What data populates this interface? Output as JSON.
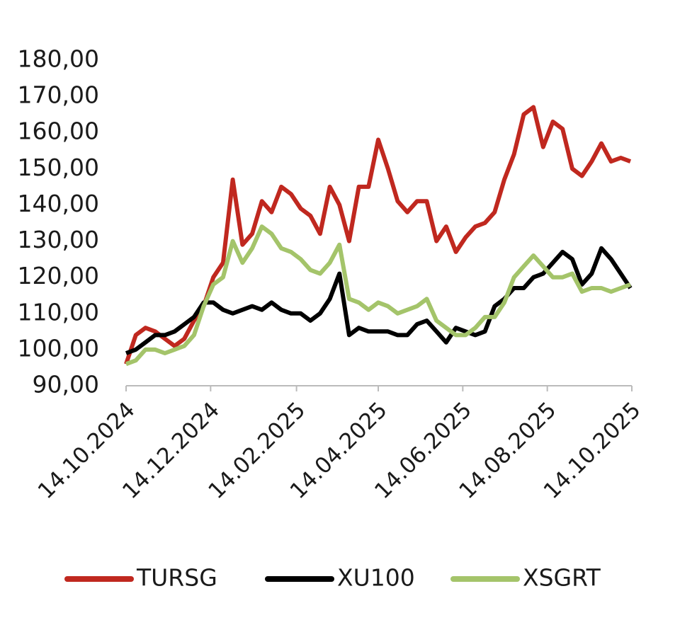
{
  "chart_data": {
    "type": "line",
    "x": [
      "14.10.2024",
      "21.10.2024",
      "28.10.2024",
      "04.11.2024",
      "11.11.2024",
      "18.11.2024",
      "25.11.2024",
      "02.12.2024",
      "09.12.2024",
      "16.12.2024",
      "23.12.2024",
      "30.12.2024",
      "06.01.2025",
      "13.01.2025",
      "20.01.2025",
      "27.01.2025",
      "03.02.2025",
      "10.02.2025",
      "17.02.2025",
      "24.02.2025",
      "03.03.2025",
      "10.03.2025",
      "17.03.2025",
      "24.03.2025",
      "31.03.2025",
      "07.04.2025",
      "14.04.2025",
      "21.04.2025",
      "28.04.2025",
      "05.05.2025",
      "12.05.2025",
      "19.05.2025",
      "26.05.2025",
      "02.06.2025",
      "09.06.2025",
      "16.06.2025",
      "23.06.2025",
      "30.06.2025",
      "07.07.2025",
      "14.07.2025",
      "21.07.2025",
      "28.07.2025",
      "04.08.2025",
      "11.08.2025",
      "18.08.2025",
      "25.08.2025",
      "01.09.2025",
      "08.09.2025",
      "15.09.2025",
      "22.09.2025",
      "29.09.2025",
      "06.10.2025",
      "13.10.2025"
    ],
    "series": [
      {
        "name": "TURSG",
        "color": "#c0281f",
        "values": [
          96,
          104,
          106,
          105,
          103,
          101,
          103,
          108,
          112,
          120,
          124,
          147,
          129,
          132,
          141,
          138,
          145,
          143,
          139,
          137,
          132,
          145,
          140,
          130,
          145,
          145,
          158,
          150,
          141,
          138,
          141,
          141,
          130,
          134,
          127,
          131,
          134,
          135,
          138,
          147,
          154,
          165,
          167,
          156,
          163,
          161,
          150,
          148,
          152,
          157,
          152,
          153,
          152
        ]
      },
      {
        "name": "XU100",
        "color": "#000000",
        "values": [
          99,
          100,
          102,
          104,
          104,
          105,
          107,
          109,
          113,
          113,
          111,
          110,
          111,
          112,
          111,
          113,
          111,
          110,
          110,
          108,
          110,
          114,
          121,
          104,
          106,
          105,
          105,
          105,
          104,
          104,
          107,
          108,
          105,
          102,
          106,
          105,
          104,
          105,
          112,
          114,
          117,
          117,
          120,
          121,
          124,
          127,
          125,
          118,
          121,
          128,
          125,
          121,
          117
        ]
      },
      {
        "name": "XSGRT",
        "color": "#a4c46a",
        "values": [
          96,
          97,
          100,
          100,
          99,
          100,
          101,
          104,
          112,
          118,
          120,
          130,
          124,
          128,
          134,
          132,
          128,
          127,
          125,
          122,
          121,
          124,
          129,
          114,
          113,
          111,
          113,
          112,
          110,
          111,
          112,
          114,
          108,
          106,
          104,
          104,
          106,
          109,
          109,
          113,
          120,
          123,
          126,
          123,
          120,
          120,
          121,
          116,
          117,
          117,
          116,
          117,
          118
        ]
      }
    ],
    "xlim": [
      "14.10.2024",
      "14.10.2025"
    ],
    "xticks": [
      "14.10.2024",
      "14.12.2024",
      "14.02.2025",
      "14.04.2025",
      "14.06.2025",
      "14.08.2025",
      "14.10.2025"
    ],
    "ylim": [
      90,
      180
    ],
    "yticks": [
      {
        "value": 90,
        "label": "90,00"
      },
      {
        "value": 100,
        "label": "100,00"
      },
      {
        "value": 110,
        "label": "110,00"
      },
      {
        "value": 120,
        "label": "120,00"
      },
      {
        "value": 130,
        "label": "130,00"
      },
      {
        "value": 140,
        "label": "140,00"
      },
      {
        "value": 150,
        "label": "150,00"
      },
      {
        "value": 160,
        "label": "160,00"
      },
      {
        "value": 170,
        "label": "170,00"
      },
      {
        "value": 180,
        "label": "180,00"
      }
    ],
    "legend": "bottom"
  }
}
